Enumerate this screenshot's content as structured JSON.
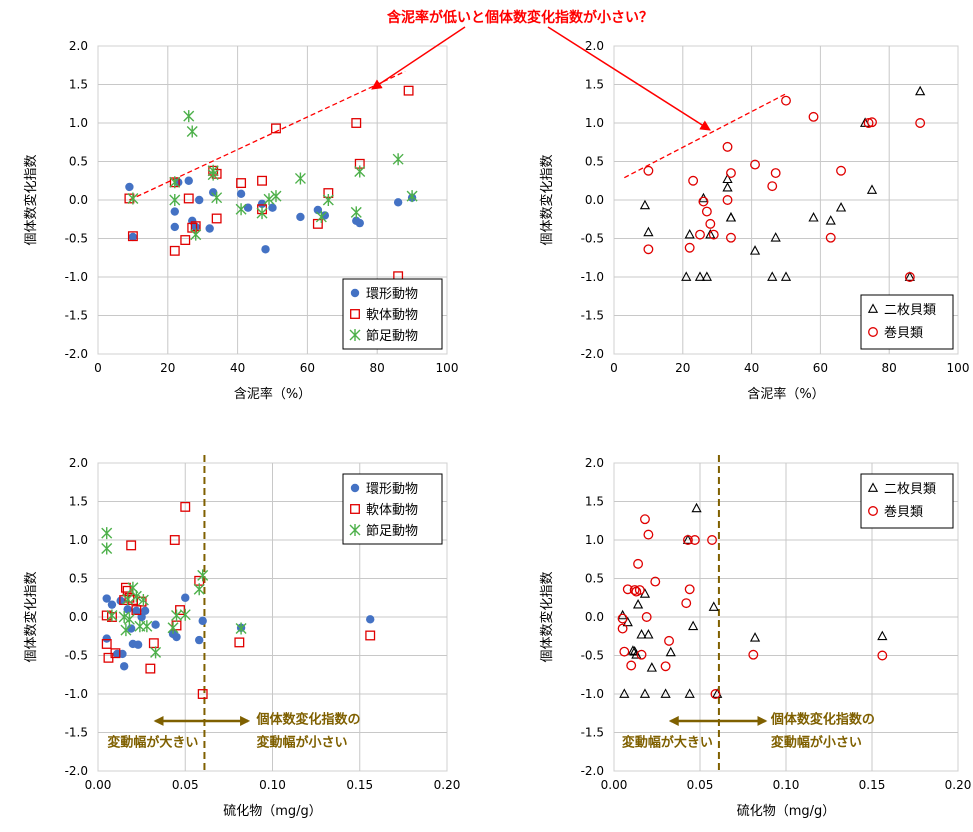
{
  "headline": "含泥率が低いと個体数変化指数が小さい？",
  "colors": {
    "annelid": "#4472c4",
    "mollusc": "#e00000",
    "arthropod": "#4db04a",
    "bivalve": "#000000",
    "gastropod": "#e00000",
    "annotation_red": "#ff0000",
    "annotation_gold": "#7f6000",
    "grid": "#c8c8c8"
  },
  "chart_data": [
    {
      "type": "scatter",
      "id": "top-left",
      "xlabel": "含泥率（%）",
      "ylabel": "個体数変化指数",
      "xlim": [
        0,
        100
      ],
      "ylim": [
        -2.0,
        2.0
      ],
      "xticks": [
        "0",
        "20",
        "40",
        "60",
        "80",
        "100"
      ],
      "yticks": [
        "2.0",
        "1.5",
        "1.0",
        "0.5",
        "0.0",
        "-0.5",
        "-1.0",
        "-1.5",
        "-2.0"
      ],
      "grid": true,
      "legend_position": "bottom-right",
      "series": [
        {
          "name": "環形動物",
          "marker": "circle-filled",
          "color": "#4472c4",
          "points": [
            [
              9,
              0.17
            ],
            [
              10,
              -0.48
            ],
            [
              22,
              -0.15
            ],
            [
              22,
              -0.35
            ],
            [
              23,
              0.23
            ],
            [
              26,
              0.25
            ],
            [
              27,
              -0.27
            ],
            [
              28,
              -0.35
            ],
            [
              29,
              0.0
            ],
            [
              32,
              -0.37
            ],
            [
              33,
              0.1
            ],
            [
              41,
              0.08
            ],
            [
              43,
              -0.1
            ],
            [
              47,
              -0.05
            ],
            [
              48,
              -0.64
            ],
            [
              50,
              -0.1
            ],
            [
              58,
              -0.22
            ],
            [
              63,
              -0.13
            ],
            [
              65,
              -0.2
            ],
            [
              74,
              -0.27
            ],
            [
              75,
              -0.3
            ],
            [
              86,
              -0.03
            ],
            [
              90,
              0.03
            ]
          ]
        },
        {
          "name": "軟体動物",
          "marker": "square-open",
          "color": "#e00000",
          "points": [
            [
              9,
              0.02
            ],
            [
              10,
              -0.47
            ],
            [
              22,
              -0.66
            ],
            [
              22,
              0.23
            ],
            [
              25,
              -0.52
            ],
            [
              26,
              0.02
            ],
            [
              27,
              -0.36
            ],
            [
              28,
              -0.34
            ],
            [
              33,
              0.38
            ],
            [
              34,
              0.34
            ],
            [
              34,
              -0.24
            ],
            [
              41,
              0.22
            ],
            [
              47,
              0.25
            ],
            [
              47,
              -0.12
            ],
            [
              51,
              0.93
            ],
            [
              63,
              -0.31
            ],
            [
              66,
              0.09
            ],
            [
              74,
              1.0
            ],
            [
              75,
              0.47
            ],
            [
              86,
              -0.99
            ],
            [
              89,
              1.42
            ]
          ]
        },
        {
          "name": "節足動物",
          "marker": "asterisk",
          "color": "#4db04a",
          "points": [
            [
              10,
              0.02
            ],
            [
              22,
              0.0
            ],
            [
              22,
              0.23
            ],
            [
              26,
              1.09
            ],
            [
              27,
              0.89
            ],
            [
              28,
              -0.45
            ],
            [
              33,
              0.38
            ],
            [
              33,
              0.33
            ],
            [
              34,
              0.03
            ],
            [
              41,
              -0.12
            ],
            [
              47,
              -0.17
            ],
            [
              49,
              0.01
            ],
            [
              51,
              0.05
            ],
            [
              58,
              0.28
            ],
            [
              64,
              -0.22
            ],
            [
              66,
              0.0
            ],
            [
              74,
              -0.16
            ],
            [
              75,
              0.37
            ],
            [
              86,
              0.53
            ],
            [
              90,
              0.05
            ]
          ]
        }
      ],
      "trend": {
        "from": [
          9,
          0.0
        ],
        "to": [
          88,
          1.67
        ]
      }
    },
    {
      "type": "scatter",
      "id": "top-right",
      "xlabel": "含泥率（%）",
      "ylabel": "個体数変化指数",
      "xlim": [
        0,
        100
      ],
      "ylim": [
        -2.0,
        2.0
      ],
      "xticks": [
        "0",
        "20",
        "40",
        "60",
        "80",
        "100"
      ],
      "yticks": [
        "2.0",
        "1.5",
        "1.0",
        "0.5",
        "0.0",
        "-0.5",
        "-1.0",
        "-1.5",
        "-2.0"
      ],
      "grid": true,
      "legend_position": "bottom-right",
      "series": [
        {
          "name": "二枚貝類",
          "marker": "triangle-open",
          "color": "#000000",
          "points": [
            [
              9,
              -0.07
            ],
            [
              10,
              -0.42
            ],
            [
              21,
              -1.0
            ],
            [
              22,
              -0.45
            ],
            [
              25,
              -1.0
            ],
            [
              26,
              0.02
            ],
            [
              27,
              -1.0
            ],
            [
              28,
              -0.45
            ],
            [
              33,
              0.27
            ],
            [
              33,
              0.16
            ],
            [
              34,
              -0.23
            ],
            [
              34,
              -0.23
            ],
            [
              41,
              -0.66
            ],
            [
              46,
              -1.0
            ],
            [
              47,
              -0.49
            ],
            [
              50,
              -1.0
            ],
            [
              58,
              -0.23
            ],
            [
              63,
              -0.27
            ],
            [
              66,
              -0.1
            ],
            [
              73,
              1.0
            ],
            [
              75,
              0.13
            ],
            [
              86,
              -1.0
            ],
            [
              89,
              1.41
            ]
          ]
        },
        {
          "name": "巻貝類",
          "marker": "circle-open",
          "color": "#e00000",
          "points": [
            [
              10,
              0.38
            ],
            [
              10,
              -0.64
            ],
            [
              22,
              -0.62
            ],
            [
              23,
              0.25
            ],
            [
              25,
              -0.45
            ],
            [
              26,
              -0.02
            ],
            [
              27,
              -0.15
            ],
            [
              28,
              -0.31
            ],
            [
              29,
              -0.45
            ],
            [
              33,
              0.0
            ],
            [
              33,
              0.69
            ],
            [
              34,
              0.35
            ],
            [
              34,
              -0.49
            ],
            [
              41,
              0.46
            ],
            [
              46,
              0.18
            ],
            [
              47,
              0.35
            ],
            [
              50,
              1.29
            ],
            [
              58,
              1.08
            ],
            [
              63,
              -0.49
            ],
            [
              66,
              0.38
            ],
            [
              74,
              1.0
            ],
            [
              75,
              1.01
            ],
            [
              86,
              -1.0
            ],
            [
              89,
              1.0
            ]
          ]
        }
      ],
      "trend": {
        "from": [
          3,
          0.29
        ],
        "to": [
          50,
          1.38
        ]
      }
    },
    {
      "type": "scatter",
      "id": "bottom-left",
      "xlabel": "硫化物（mg/g）",
      "ylabel": "個体数変化指数",
      "xlim": [
        0,
        0.2
      ],
      "ylim": [
        -2.0,
        2.0
      ],
      "xticks": [
        "0.00",
        "0.05",
        "0.10",
        "0.15",
        "0.20"
      ],
      "yticks": [
        "2.0",
        "1.5",
        "1.0",
        "0.5",
        "0.0",
        "-0.5",
        "-1.0",
        "-1.5",
        "-2.0"
      ],
      "grid": true,
      "legend_position": "top-right",
      "series": [
        {
          "name": "環形動物",
          "marker": "circle-filled",
          "color": "#4472c4",
          "points": [
            [
              0.005,
              0.24
            ],
            [
              0.005,
              -0.28
            ],
            [
              0.008,
              0.16
            ],
            [
              0.011,
              -0.48
            ],
            [
              0.013,
              0.21
            ],
            [
              0.014,
              -0.48
            ],
            [
              0.015,
              -0.64
            ],
            [
              0.017,
              0.1
            ],
            [
              0.019,
              -0.15
            ],
            [
              0.02,
              -0.35
            ],
            [
              0.022,
              0.08
            ],
            [
              0.023,
              -0.36
            ],
            [
              0.025,
              0.0
            ],
            [
              0.027,
              0.08
            ],
            [
              0.033,
              -0.1
            ],
            [
              0.043,
              -0.22
            ],
            [
              0.045,
              -0.26
            ],
            [
              0.05,
              0.25
            ],
            [
              0.058,
              -0.3
            ],
            [
              0.06,
              -0.05
            ],
            [
              0.082,
              -0.14
            ],
            [
              0.156,
              -0.03
            ]
          ]
        },
        {
          "name": "軟体動物",
          "marker": "square-open",
          "color": "#e00000",
          "points": [
            [
              0.005,
              0.02
            ],
            [
              0.005,
              -0.35
            ],
            [
              0.006,
              -0.53
            ],
            [
              0.008,
              0.0
            ],
            [
              0.01,
              -0.47
            ],
            [
              0.015,
              0.22
            ],
            [
              0.016,
              0.38
            ],
            [
              0.017,
              0.34
            ],
            [
              0.018,
              0.25
            ],
            [
              0.019,
              0.93
            ],
            [
              0.02,
              0.22
            ],
            [
              0.022,
              0.09
            ],
            [
              0.025,
              0.2
            ],
            [
              0.03,
              -0.67
            ],
            [
              0.032,
              -0.34
            ],
            [
              0.044,
              1.0
            ],
            [
              0.045,
              -0.11
            ],
            [
              0.047,
              0.09
            ],
            [
              0.05,
              1.43
            ],
            [
              0.058,
              0.47
            ],
            [
              0.06,
              -1.0
            ],
            [
              0.081,
              -0.33
            ],
            [
              0.156,
              -0.24
            ]
          ]
        },
        {
          "name": "節足動物",
          "marker": "asterisk",
          "color": "#4db04a",
          "points": [
            [
              0.005,
              1.09
            ],
            [
              0.005,
              0.89
            ],
            [
              0.008,
              0.02
            ],
            [
              0.015,
              0.0
            ],
            [
              0.016,
              -0.17
            ],
            [
              0.017,
              0.23
            ],
            [
              0.018,
              -0.03
            ],
            [
              0.02,
              0.38
            ],
            [
              0.022,
              0.27
            ],
            [
              0.024,
              -0.12
            ],
            [
              0.026,
              0.22
            ],
            [
              0.028,
              -0.12
            ],
            [
              0.033,
              -0.46
            ],
            [
              0.043,
              -0.14
            ],
            [
              0.045,
              0.02
            ],
            [
              0.05,
              0.03
            ],
            [
              0.058,
              0.36
            ],
            [
              0.06,
              0.54
            ],
            [
              0.082,
              -0.15
            ]
          ]
        }
      ],
      "threshold_x": 0.061,
      "arrow_from": 0.033,
      "arrow_to": 0.086,
      "annotation_left": "変動幅が大きい",
      "annotation_right_line1": "個体数変化指数の",
      "annotation_right_line2": "変動幅が小さい"
    },
    {
      "type": "scatter",
      "id": "bottom-right",
      "xlabel": "硫化物（mg/g）",
      "ylabel": "個体数変化指数",
      "xlim": [
        0,
        0.2
      ],
      "ylim": [
        -2.0,
        2.0
      ],
      "xticks": [
        "0.00",
        "0.05",
        "0.10",
        "0.15",
        "0.20"
      ],
      "yticks": [
        "2.0",
        "1.5",
        "1.0",
        "0.5",
        "0.0",
        "-0.5",
        "-1.0",
        "-1.5",
        "-2.0"
      ],
      "grid": true,
      "legend_position": "top-right",
      "series": [
        {
          "name": "二枚貝類",
          "marker": "triangle-open",
          "color": "#000000",
          "points": [
            [
              0.005,
              0.02
            ],
            [
              0.006,
              -1.0
            ],
            [
              0.008,
              -0.07
            ],
            [
              0.011,
              -0.44
            ],
            [
              0.012,
              -0.45
            ],
            [
              0.013,
              -0.49
            ],
            [
              0.014,
              0.16
            ],
            [
              0.016,
              -0.23
            ],
            [
              0.018,
              0.3
            ],
            [
              0.018,
              -1.0
            ],
            [
              0.02,
              -0.23
            ],
            [
              0.022,
              -0.66
            ],
            [
              0.03,
              -1.0
            ],
            [
              0.033,
              -0.46
            ],
            [
              0.043,
              1.0
            ],
            [
              0.044,
              -1.0
            ],
            [
              0.046,
              -0.12
            ],
            [
              0.048,
              1.41
            ],
            [
              0.058,
              0.13
            ],
            [
              0.06,
              -1.0
            ],
            [
              0.082,
              -0.27
            ],
            [
              0.156,
              -0.25
            ]
          ]
        },
        {
          "name": "巻貝類",
          "marker": "circle-open",
          "color": "#e00000",
          "points": [
            [
              0.005,
              -0.02
            ],
            [
              0.005,
              -0.15
            ],
            [
              0.006,
              -0.45
            ],
            [
              0.008,
              0.36
            ],
            [
              0.01,
              -0.63
            ],
            [
              0.012,
              0.35
            ],
            [
              0.013,
              0.33
            ],
            [
              0.014,
              0.69
            ],
            [
              0.015,
              0.35
            ],
            [
              0.016,
              -0.49
            ],
            [
              0.018,
              1.27
            ],
            [
              0.019,
              0.0
            ],
            [
              0.02,
              1.07
            ],
            [
              0.024,
              0.46
            ],
            [
              0.03,
              -0.64
            ],
            [
              0.032,
              -0.31
            ],
            [
              0.042,
              0.18
            ],
            [
              0.043,
              1.0
            ],
            [
              0.044,
              0.36
            ],
            [
              0.047,
              1.0
            ],
            [
              0.057,
              1.0
            ],
            [
              0.059,
              -1.0
            ],
            [
              0.081,
              -0.49
            ],
            [
              0.156,
              -0.5
            ]
          ]
        }
      ],
      "threshold_x": 0.061,
      "arrow_from": 0.033,
      "arrow_to": 0.088,
      "annotation_left": "変動幅が大きい",
      "annotation_right_line1": "個体数変化指数の",
      "annotation_right_line2": "変動幅が小さい"
    }
  ]
}
